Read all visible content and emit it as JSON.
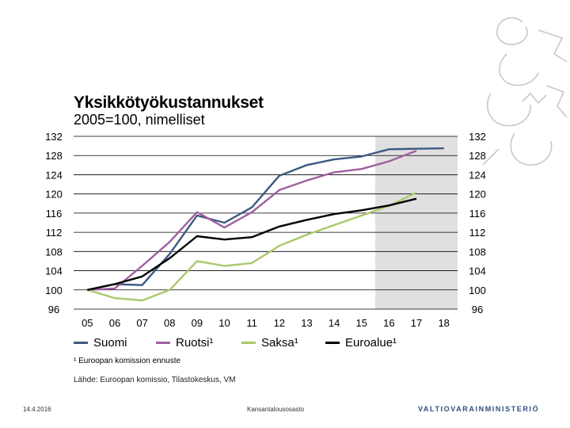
{
  "header": {
    "title": "Yksikkötyökustannukset",
    "subtitle": "2005=100, nimelliset"
  },
  "chart_data": {
    "type": "line",
    "title": "Yksikkötyökustannukset",
    "subtitle": "2005=100, nimelliset",
    "categories": [
      "05",
      "06",
      "07",
      "08",
      "09",
      "10",
      "11",
      "12",
      "13",
      "14",
      "15",
      "16",
      "17",
      "18"
    ],
    "y_ticks": [
      96,
      100,
      104,
      108,
      112,
      116,
      120,
      124,
      128,
      132
    ],
    "y_tick_labels": [
      "96",
      "100",
      "104",
      "108",
      "112",
      "116",
      "120",
      "124",
      "128",
      "132"
    ],
    "ylim": [
      96,
      132
    ],
    "forecast_shading_from": "16",
    "grid": true,
    "series": [
      {
        "name": "Suomi",
        "color": "#3d5a80",
        "values": [
          100,
          101.2,
          101,
          107.5,
          115.5,
          114,
          117.2,
          123.8,
          126,
          127.2,
          127.8,
          129.3,
          129.4,
          129.5
        ]
      },
      {
        "name": "Ruotsi",
        "color": "#a05fa0",
        "values": [
          100,
          100.3,
          105,
          110,
          116.2,
          113,
          116.2,
          120.8,
          122.8,
          124.5,
          125.2,
          126.8,
          129,
          null
        ]
      },
      {
        "name": "Saksa",
        "color": "#a9c96b",
        "values": [
          100,
          98.3,
          97.8,
          100,
          106,
          105,
          105.6,
          109.2,
          111.5,
          113.5,
          115.5,
          117.5,
          120.3,
          null
        ]
      },
      {
        "name": "Euroalue",
        "color": "#000000",
        "values": [
          100,
          101.2,
          102.8,
          106.6,
          111.2,
          110.5,
          111,
          113.2,
          114.6,
          115.8,
          116.6,
          117.6,
          119,
          null
        ]
      }
    ]
  },
  "legend": {
    "items": [
      {
        "label": "Suomi",
        "color": "#3d5a80"
      },
      {
        "label": "Ruotsi¹",
        "color": "#a05fa0"
      },
      {
        "label": "Saksa¹",
        "color": "#a9c96b"
      },
      {
        "label": "Euroalue¹",
        "color": "#000000"
      }
    ]
  },
  "notes": {
    "footnote": "¹ Euroopan komission ennuste",
    "source": "Lähde: Euroopan komissio, Tilastokeskus, VM"
  },
  "footer": {
    "date": "14.4.2016",
    "department": "Kansantalousosasto",
    "ministry": "VALTIOVARAINMINISTERIÖ"
  },
  "colors": {
    "forecast_shade": "#e0e0e0",
    "grid": "#000000"
  }
}
